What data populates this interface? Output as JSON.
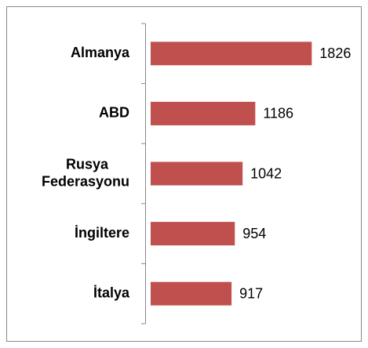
{
  "chart_data": {
    "type": "bar",
    "orientation": "horizontal",
    "categories": [
      "Almanya",
      "ABD",
      "Rusya Federasyonu",
      "İngiltere",
      "İtalya"
    ],
    "values": [
      1826,
      1186,
      1042,
      954,
      917
    ],
    "color": "#c0504d",
    "xlim": [
      0,
      1850
    ]
  }
}
